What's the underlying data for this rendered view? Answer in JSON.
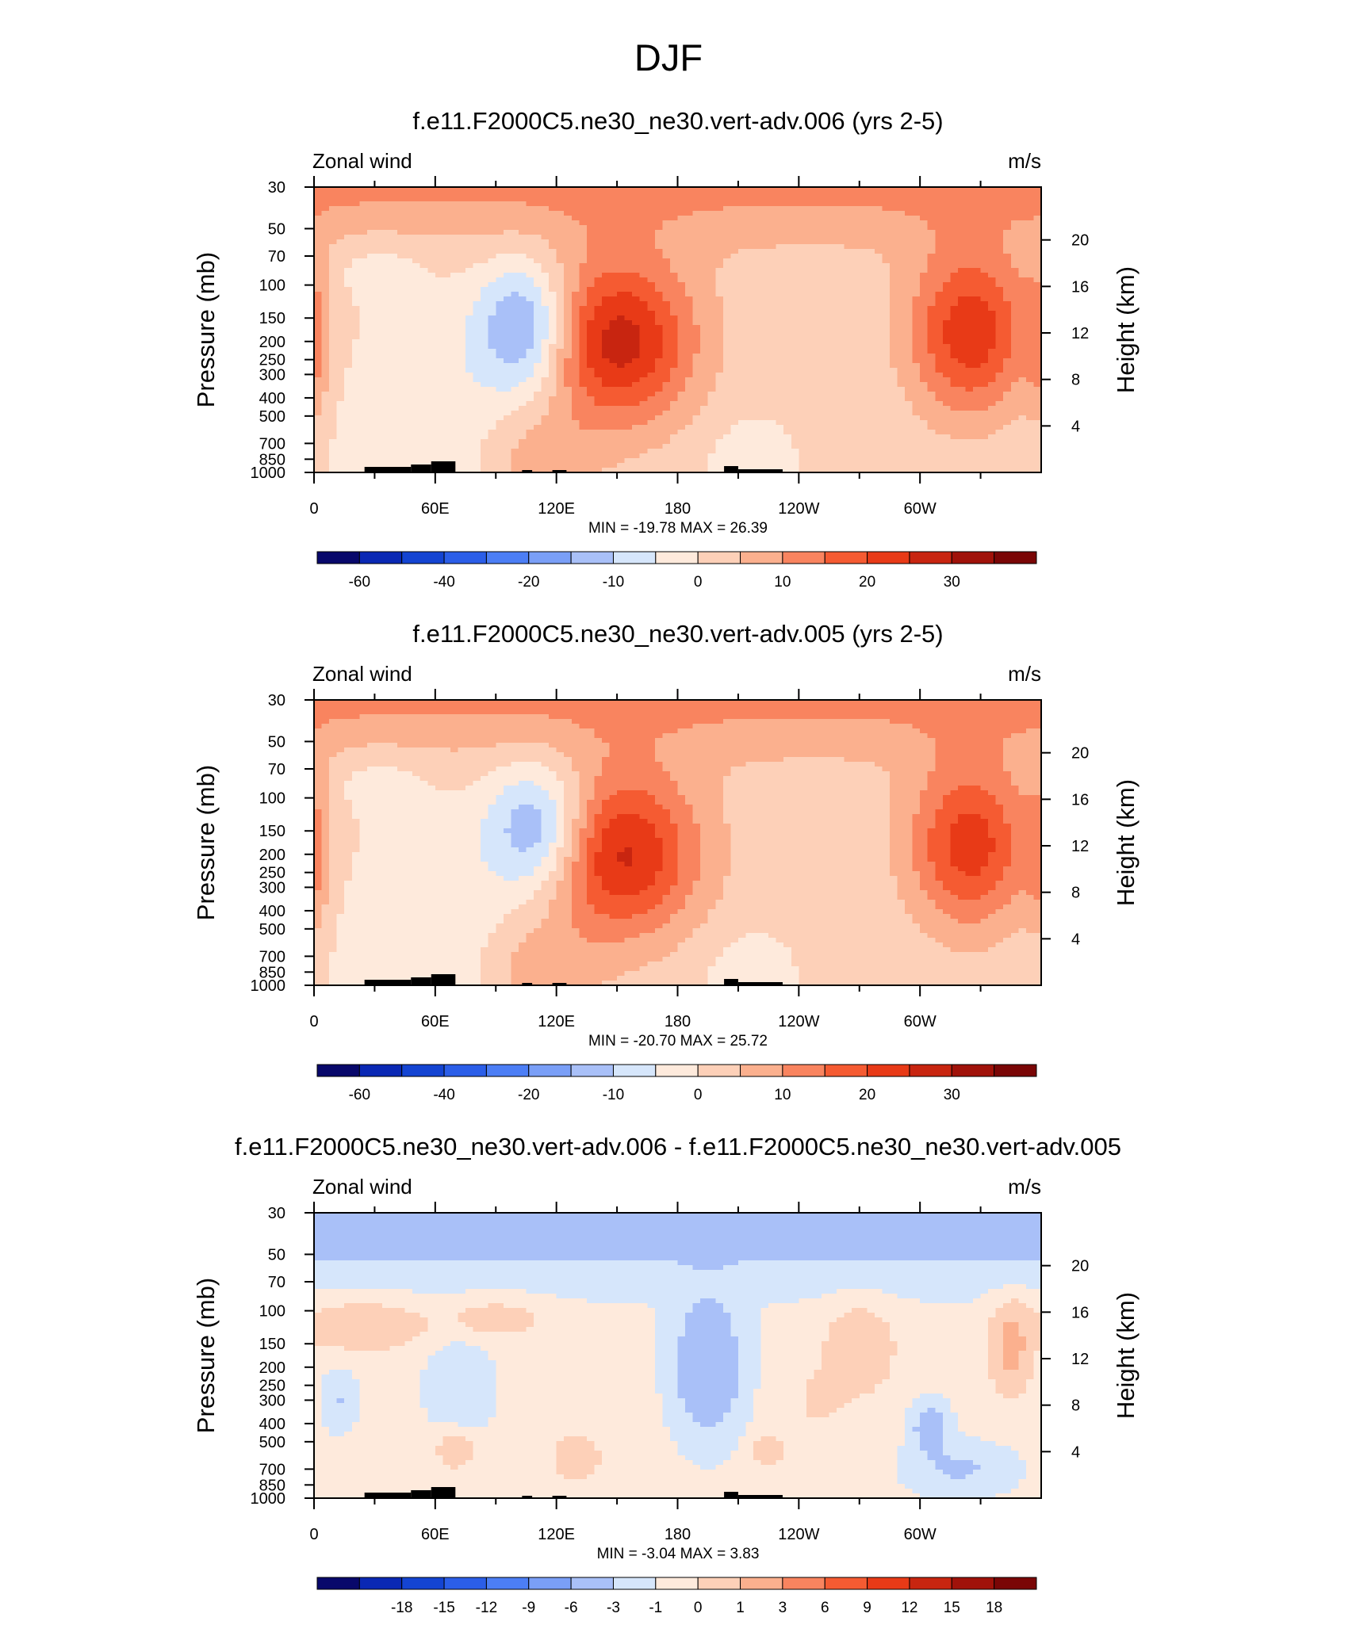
{
  "figure": {
    "title": "DJF"
  },
  "chart_data": [
    {
      "type": "heatmap",
      "title": "f.e11.F2000C5.ne30_ne30.vert-adv.006 (yrs 2-5)",
      "left_label": "Zonal wind",
      "right_label": "m/s",
      "ylabel": "Pressure (mb)",
      "y2label": "Height (km)",
      "x_ticks": [
        "0",
        "60E",
        "120E",
        "180",
        "120W",
        "60W"
      ],
      "x_tick_values": [
        0,
        60,
        120,
        180,
        240,
        300
      ],
      "xlim": [
        0,
        360
      ],
      "y_ticks": [
        "30",
        "50",
        "70",
        "100",
        "150",
        "200",
        "250",
        "300",
        "400",
        "500",
        "700",
        "850",
        "1000"
      ],
      "y_tick_values": [
        30,
        50,
        70,
        100,
        150,
        200,
        250,
        300,
        400,
        500,
        700,
        850,
        1000
      ],
      "ylim": [
        1000,
        30
      ],
      "y2_ticks": [
        "4",
        "8",
        "12",
        "16",
        "20"
      ],
      "y2_tick_values": [
        4,
        8,
        12,
        16,
        20
      ],
      "stats": "MIN = -19.78  MAX =  26.39",
      "colorbar": {
        "labels": [
          "-60",
          "-40",
          "-20",
          "-10",
          "0",
          "10",
          "20",
          "30"
        ],
        "levels": [
          -70,
          -60,
          -50,
          -40,
          -30,
          -20,
          -15,
          -10,
          -5,
          0,
          5,
          10,
          15,
          20,
          25,
          30,
          35
        ],
        "colors": [
          "#08086b",
          "#0a28b4",
          "#1444d2",
          "#2b5ee8",
          "#4c7ef5",
          "#7a9ff7",
          "#a9c0f8",
          "#d6e6fb",
          "#feeadc",
          "#fdd0b8",
          "#fbb08e",
          "#f9845f",
          "#f55b32",
          "#e83a17",
          "#c82510",
          "#a0120a",
          "#7a0606"
        ],
        "first_index": 0
      },
      "field": {
        "base": 1.2,
        "features": [
          {
            "lon": 150,
            "lev": 200,
            "amp": 26.4,
            "w": 38,
            "d": 2.0
          },
          {
            "lon": 325,
            "lev": 180,
            "amp": 22.5,
            "w": 30,
            "d": 2.0
          },
          {
            "lon": 105,
            "lev": 170,
            "amp": -19.8,
            "w": 24,
            "d": 1.6
          },
          {
            "lon": 55,
            "lev": 700,
            "amp": -6,
            "w": 45,
            "d": 3.5
          },
          {
            "lon": 110,
            "lev": 850,
            "amp": 7,
            "w": 30,
            "d": 1.2
          },
          {
            "lon": 215,
            "lev": 880,
            "amp": -5,
            "w": 20,
            "d": 1.0
          },
          {
            "lon": 0,
            "lev": 200,
            "amp": 8,
            "w": 8,
            "d": 2.0
          },
          {
            "lon": 30,
            "lev": 80,
            "amp": -4,
            "w": 25,
            "d": 0.8
          }
        ],
        "strat_amp": 11,
        "strat_lev": 25,
        "strat_depth": 1.3
      }
    },
    {
      "type": "heatmap",
      "title": "f.e11.F2000C5.ne30_ne30.vert-adv.005 (yrs 2-5)",
      "left_label": "Zonal wind",
      "right_label": "m/s",
      "ylabel": "Pressure (mb)",
      "y2label": "Height (km)",
      "x_ticks": [
        "0",
        "60E",
        "120E",
        "180",
        "120W",
        "60W"
      ],
      "x_tick_values": [
        0,
        60,
        120,
        180,
        240,
        300
      ],
      "xlim": [
        0,
        360
      ],
      "y_ticks": [
        "30",
        "50",
        "70",
        "100",
        "150",
        "200",
        "250",
        "300",
        "400",
        "500",
        "700",
        "850",
        "1000"
      ],
      "y_tick_values": [
        30,
        50,
        70,
        100,
        150,
        200,
        250,
        300,
        400,
        500,
        700,
        850,
        1000
      ],
      "ylim": [
        1000,
        30
      ],
      "y2_ticks": [
        "4",
        "8",
        "12",
        "16",
        "20"
      ],
      "y2_tick_values": [
        4,
        8,
        12,
        16,
        20
      ],
      "stats": "MIN = -20.70  MAX =  25.72",
      "colorbar": {
        "labels": [
          "-60",
          "-40",
          "-20",
          "-10",
          "0",
          "10",
          "20",
          "30"
        ],
        "levels": [
          -70,
          -60,
          -50,
          -40,
          -30,
          -20,
          -15,
          -10,
          -5,
          0,
          5,
          10,
          15,
          20,
          25,
          30,
          35
        ],
        "colors": [
          "#08086b",
          "#0a28b4",
          "#1444d2",
          "#2b5ee8",
          "#4c7ef5",
          "#7a9ff7",
          "#a9c0f8",
          "#d6e6fb",
          "#feeadc",
          "#fdd0b8",
          "#fbb08e",
          "#f9845f",
          "#f55b32",
          "#e83a17",
          "#c82510",
          "#a0120a",
          "#7a0606"
        ],
        "first_index": 0
      },
      "field": {
        "base": 1.2,
        "features": [
          {
            "lon": 150,
            "lev": 200,
            "amp": 25.7,
            "w": 40,
            "d": 2.0
          },
          {
            "lon": 325,
            "lev": 180,
            "amp": 21.5,
            "w": 30,
            "d": 2.0
          },
          {
            "lon": 112,
            "lev": 150,
            "amp": -20.7,
            "w": 26,
            "d": 1.6
          },
          {
            "lon": 55,
            "lev": 700,
            "amp": -6,
            "w": 45,
            "d": 3.5
          },
          {
            "lon": 110,
            "lev": 850,
            "amp": 7,
            "w": 30,
            "d": 1.2
          },
          {
            "lon": 215,
            "lev": 880,
            "amp": -5,
            "w": 20,
            "d": 1.0
          },
          {
            "lon": 0,
            "lev": 200,
            "amp": 8,
            "w": 8,
            "d": 2.0
          },
          {
            "lon": 30,
            "lev": 80,
            "amp": -4,
            "w": 25,
            "d": 0.8
          }
        ],
        "strat_amp": 11,
        "strat_lev": 25,
        "strat_depth": 1.3
      }
    },
    {
      "type": "heatmap",
      "title": "f.e11.F2000C5.ne30_ne30.vert-adv.006 - f.e11.F2000C5.ne30_ne30.vert-adv.005",
      "left_label": "Zonal wind",
      "right_label": "m/s",
      "ylabel": "Pressure (mb)",
      "y2label": "Height (km)",
      "x_ticks": [
        "0",
        "60E",
        "120E",
        "180",
        "120W",
        "60W"
      ],
      "x_tick_values": [
        0,
        60,
        120,
        180,
        240,
        300
      ],
      "xlim": [
        0,
        360
      ],
      "y_ticks": [
        "30",
        "50",
        "70",
        "100",
        "150",
        "200",
        "250",
        "300",
        "400",
        "500",
        "700",
        "850",
        "1000"
      ],
      "y_tick_values": [
        30,
        50,
        70,
        100,
        150,
        200,
        250,
        300,
        400,
        500,
        700,
        850,
        1000
      ],
      "ylim": [
        1000,
        30
      ],
      "y2_ticks": [
        "4",
        "8",
        "12",
        "16",
        "20"
      ],
      "y2_tick_values": [
        4,
        8,
        12,
        16,
        20
      ],
      "stats": "MIN =  -3.04  MAX =   3.83",
      "colorbar": {
        "labels": [
          "-18",
          "-15",
          "-12",
          "-9",
          "-6",
          "-3",
          "-1",
          "0",
          "1",
          "3",
          "6",
          "9",
          "12",
          "15",
          "18"
        ],
        "levels": [
          -21,
          -18,
          -15,
          -12,
          -9,
          -6,
          -3,
          -1,
          0,
          1,
          3,
          6,
          9,
          12,
          15,
          18,
          21
        ],
        "colors": [
          "#08086b",
          "#0a28b4",
          "#1444d2",
          "#2b5ee8",
          "#4c7ef5",
          "#7a9ff7",
          "#a9c0f8",
          "#d6e6fb",
          "#feeadc",
          "#fdd0b8",
          "#fbb08e",
          "#f9845f",
          "#f55b32",
          "#e83a17",
          "#c82510",
          "#a0120a",
          "#7a0606"
        ],
        "first_index": 1
      },
      "field": {
        "base": 0.25,
        "features": [
          {
            "lon": 195,
            "lev": 200,
            "amp": -3.0,
            "w": 16,
            "d": 1.6
          },
          {
            "lon": 270,
            "lev": 160,
            "amp": 2.4,
            "w": 16,
            "d": 1.0
          },
          {
            "lon": 345,
            "lev": 160,
            "amp": 3.8,
            "w": 9,
            "d": 1.0
          },
          {
            "lon": 25,
            "lev": 120,
            "amp": 2.1,
            "w": 30,
            "d": 0.6
          },
          {
            "lon": 90,
            "lev": 110,
            "amp": 1.5,
            "w": 25,
            "d": 0.5
          },
          {
            "lon": 72,
            "lev": 250,
            "amp": -1.2,
            "w": 15,
            "d": 1.2
          },
          {
            "lon": 305,
            "lev": 420,
            "amp": -2.2,
            "w": 9,
            "d": 0.6
          },
          {
            "lon": 70,
            "lev": 550,
            "amp": 1.9,
            "w": 10,
            "d": 0.5
          },
          {
            "lon": 225,
            "lev": 560,
            "amp": 1.6,
            "w": 9,
            "d": 0.4
          },
          {
            "lon": 320,
            "lev": 700,
            "amp": -1.4,
            "w": 25,
            "d": 0.6
          },
          {
            "lon": 12,
            "lev": 300,
            "amp": -1.3,
            "w": 8,
            "d": 0.7
          },
          {
            "lon": 130,
            "lev": 600,
            "amp": 1.1,
            "w": 18,
            "d": 0.9
          },
          {
            "lon": 250,
            "lev": 300,
            "amp": 1.0,
            "w": 14,
            "d": 0.8
          }
        ],
        "strat_amp": -2.3,
        "strat_lev": 30,
        "strat_depth": 1.1
      }
    }
  ]
}
